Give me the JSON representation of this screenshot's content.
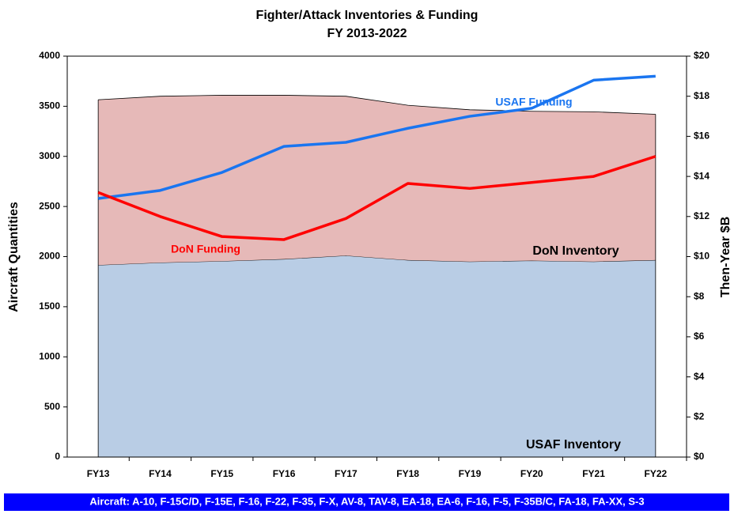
{
  "chart_data": {
    "type": "area",
    "title": "Fighter/Attack Inventories & Funding",
    "subtitle": "FY 2013-2022",
    "ylabel": "Aircraft Quantities",
    "y2label": "Then-Year $B",
    "categories": [
      "FY13",
      "FY14",
      "FY15",
      "FY16",
      "FY17",
      "FY18",
      "FY19",
      "FY20",
      "FY21",
      "FY22"
    ],
    "ylim": [
      0,
      4000
    ],
    "yticks": [
      0,
      500,
      1000,
      1500,
      2000,
      2500,
      3000,
      3500,
      4000
    ],
    "y2lim": [
      0,
      20
    ],
    "y2ticks": [
      {
        "value": 0,
        "label": "$0"
      },
      {
        "value": 2,
        "label": "$2"
      },
      {
        "value": 4,
        "label": "$4"
      },
      {
        "value": 6,
        "label": "$6"
      },
      {
        "value": 8,
        "label": "$8"
      },
      {
        "value": 10,
        "label": "$10"
      },
      {
        "value": 12,
        "label": "$12"
      },
      {
        "value": 14,
        "label": "$14"
      },
      {
        "value": 16,
        "label": "$16"
      },
      {
        "value": 18,
        "label": "$18"
      },
      {
        "value": 20,
        "label": "$20"
      }
    ],
    "series": [
      {
        "name": "USAF Inventory",
        "type": "area",
        "stacked": true,
        "color": "#b9cde5",
        "values": [
          1915,
          1940,
          1955,
          1975,
          2010,
          1965,
          1950,
          1960,
          1950,
          1965
        ]
      },
      {
        "name": "DoN Inventory",
        "type": "area",
        "stacked": true,
        "color": "#e6b9b8",
        "values": [
          1650,
          1660,
          1655,
          1635,
          1590,
          1545,
          1515,
          1490,
          1495,
          1455
        ]
      },
      {
        "name": "USAF Funding",
        "type": "line",
        "axis": "y2",
        "color": "#1a75f0",
        "values": [
          12.9,
          13.3,
          14.2,
          15.5,
          15.7,
          16.4,
          17.0,
          17.4,
          18.8,
          19.0
        ]
      },
      {
        "name": "DoN Funding",
        "type": "line",
        "axis": "y2",
        "color": "#ff0000",
        "values": [
          13.2,
          12.0,
          11.0,
          10.85,
          11.9,
          13.65,
          13.4,
          13.7,
          14.0,
          15.0
        ]
      }
    ],
    "footnote": "Aircraft: A-10, F-15C/D, F-15E, F-16, F-22, F-35, F-X, AV-8, TAV-8, EA-18, EA-6, F-16, F-5, F-35B/C, FA-18, FA-XX, S-3"
  }
}
